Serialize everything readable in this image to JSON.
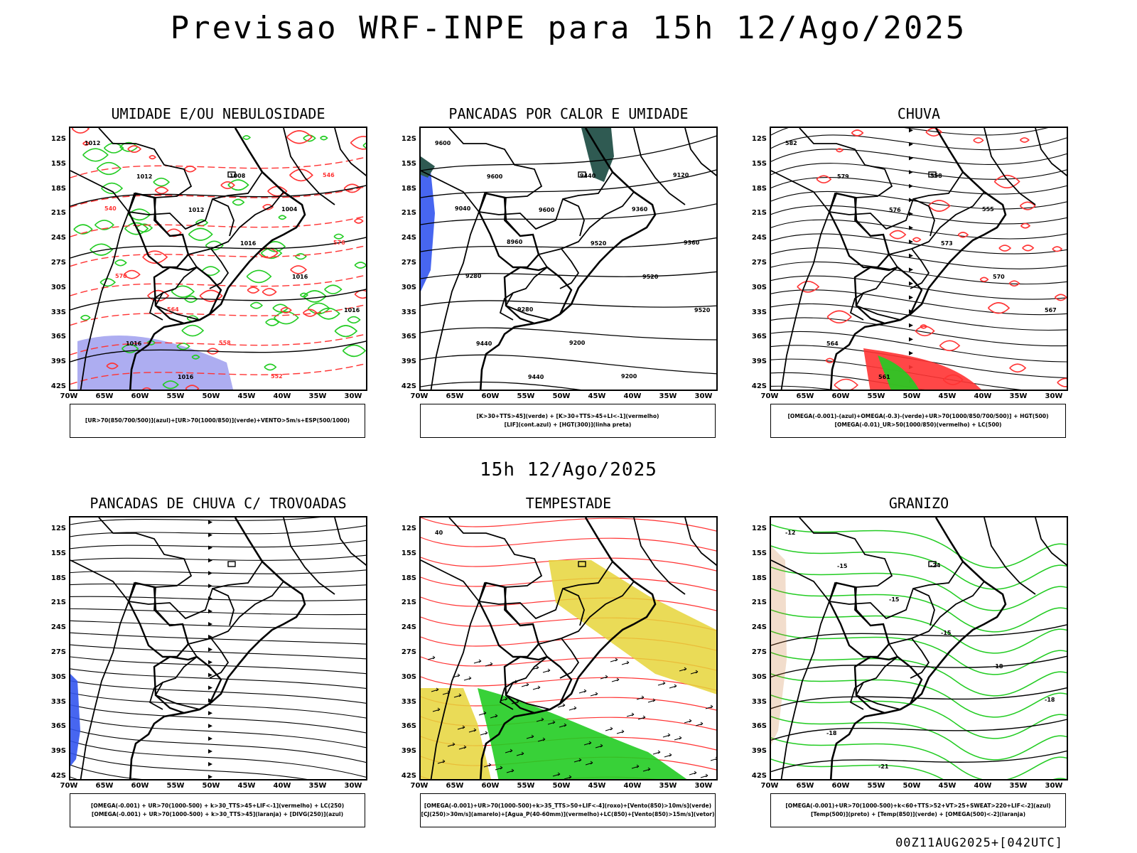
{
  "title": "Previsao WRF-INPE  para 15h 12/Ago/2025",
  "subtitle": "15h 12/Ago/2025",
  "footer": "00Z11AUG2025+[042UTC]",
  "axis": {
    "lat_labels": [
      "12S",
      "15S",
      "18S",
      "21S",
      "24S",
      "27S",
      "30S",
      "33S",
      "36S",
      "39S",
      "42S"
    ],
    "lon_labels": [
      "70W",
      "65W",
      "60W",
      "55W",
      "50W",
      "45W",
      "40W",
      "35W",
      "30W"
    ]
  },
  "panels": [
    {
      "id": "umidade",
      "title": "UMIDADE E/OU NEBULOSIDADE",
      "legend": [
        "[UR>70(850/700/500)](azul)+[UR>70(1000/850)](verde)+VENTO>5m/s+ESP(500/1000)"
      ],
      "contour_labels": [
        "1012",
        "1012",
        "1012",
        "1016",
        "1016",
        "1016",
        "1016",
        "1016",
        "1008",
        "1004",
        "576",
        "570",
        "564",
        "558",
        "552",
        "546",
        "540"
      ]
    },
    {
      "id": "pancadas-calor",
      "title": "PANCADAS POR CALOR E UMIDADE",
      "legend": [
        "[K>30+TTS>45](verde) + [K>30+TTS>45+LI<-1](vermelho)",
        "[LIF](cont.azul) + [HGT(300)](linha preta)"
      ],
      "contour_labels": [
        "9600",
        "9600",
        "9600",
        "9520",
        "9520",
        "9520",
        "9440",
        "9440",
        "9440",
        "9360",
        "9360",
        "9280",
        "9280",
        "9200",
        "9200",
        "9120",
        "9040",
        "8960"
      ]
    },
    {
      "id": "chuva",
      "title": "CHUVA",
      "legend": [
        "[OMEGA(-0.001)-(azul)+OMEGA(-0.3)-(verde)+UR>70(1000/850/700/500)] + HGT(500)",
        "[OMEGA(-0.01)_UR>50(1000/850)(vermelho) + LC(500)"
      ],
      "contour_labels": [
        "582",
        "579",
        "576",
        "573",
        "570",
        "567",
        "564",
        "561",
        "558",
        "555"
      ]
    },
    {
      "id": "trovoadas",
      "title": "PANCADAS DE CHUVA C/ TROVOADAS",
      "legend": [
        "[OMEGA(-0.001) + UR>70(1000-500) + k>30_TTS>45+LIF<-1](vermelho) + LC(250)",
        "[OMEGA(-0.001) + UR>70(1000-500) + k>30_TTS>45](laranja) + [DIVG(250)](azul)"
      ],
      "contour_labels": []
    },
    {
      "id": "tempestade",
      "title": "TEMPESTADE",
      "legend": [
        "[OMEGA(-0.001)+UR>70(1000-500)+k>35_TTS>50+LIF<-4](roxo)+[Vento(850)>10m/s](verde)",
        "[CJ(250)>30m/s](amarelo)+[Agua_P(40-60mm)](vermelho)+LC(850)+[Vento(850)>15m/s](vetor)"
      ],
      "contour_labels": [
        "40"
      ]
    },
    {
      "id": "granizo",
      "title": "GRANIZO",
      "legend": [
        "[OMEGA(-0.001)+UR>70(1000-500)+k<60+TTS>52+VT>25+SWEAT>220+LIF<-2](azul)",
        "[Temp(500)](preto) + [Temp(850)](verde) + [OMEGA(500)<-2](laranja)"
      ],
      "contour_labels": [
        "-12",
        "-15",
        "-15",
        "-15",
        "-18",
        "-18",
        "-18",
        "-21",
        "-24"
      ]
    }
  ],
  "colors": {
    "red": "#ff3333",
    "green": "#22cc22",
    "blue": "#3355ee",
    "lavender": "#9999ee",
    "yellow": "#e6d53a",
    "teal": "#2f5a52",
    "orange": "#cc7733"
  }
}
